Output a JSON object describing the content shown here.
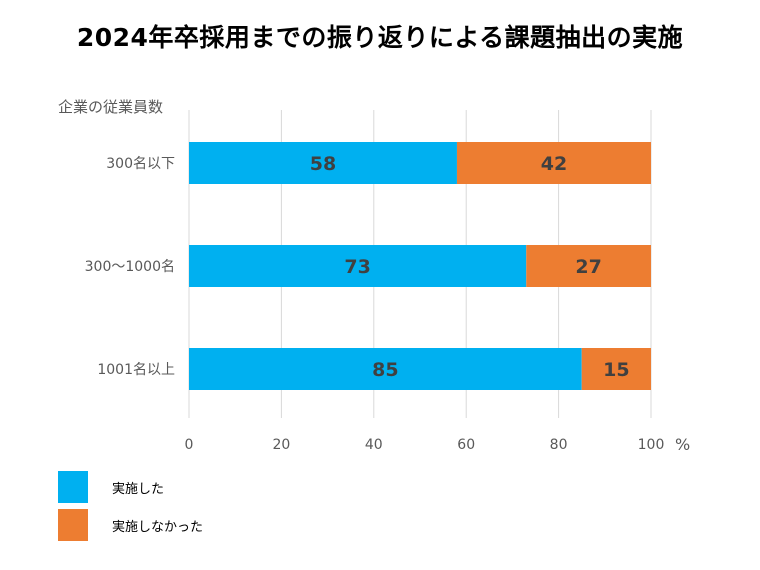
{
  "title": "2024年卒採用までの振り返りによる課題抽出の実施",
  "chart_data": {
    "type": "bar",
    "orientation": "horizontal",
    "stacked": true,
    "title": "2024年卒採用までの振り返りによる課題抽出の実施",
    "category_axis_title": "企業の従業員数",
    "categories": [
      "300名以下",
      "300〜1000名",
      "1001名以上"
    ],
    "series": [
      {
        "name": "実施した",
        "values": [
          58,
          73,
          85
        ],
        "color": "#00b0f0"
      },
      {
        "name": "実施しなかった",
        "values": [
          42,
          27,
          15
        ],
        "color": "#ed7d31"
      }
    ],
    "x_ticks": [
      "0",
      "20",
      "40",
      "60",
      "80",
      "100"
    ],
    "x_unit": "%",
    "xlim": [
      0,
      100
    ],
    "grid": true,
    "legend_position": "bottom-left"
  }
}
